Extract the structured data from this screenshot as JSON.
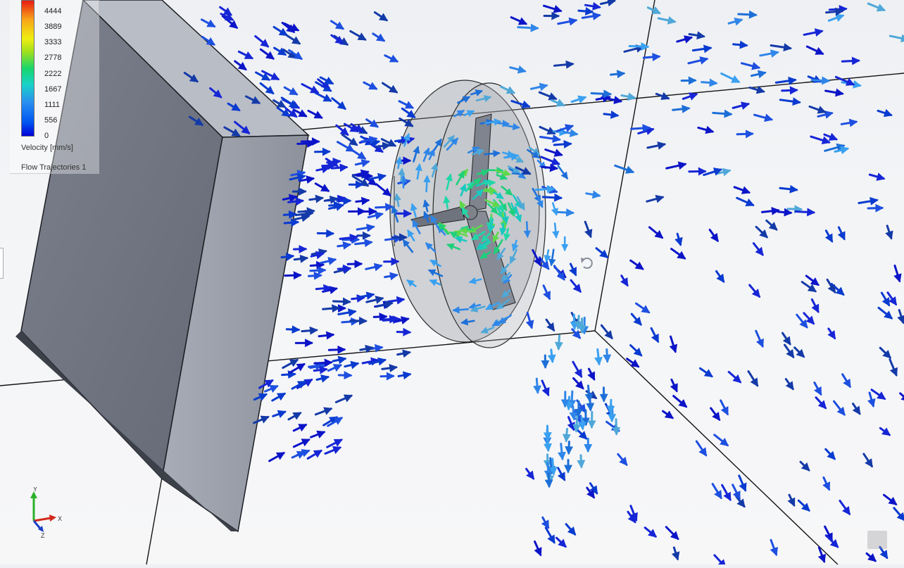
{
  "legend": {
    "ticks": [
      "4444",
      "3889",
      "3333",
      "2778",
      "2222",
      "1667",
      "1111",
      "556",
      "0"
    ],
    "title": "Velocity [mm/s]",
    "subtitle": "Flow Trajectories 1"
  },
  "triad": {
    "x_label": "X",
    "y_label": "Y",
    "z_label": "Z"
  },
  "colors": {
    "part_face_dark": "#6f7480",
    "part_face_light": "#8a8f9a",
    "part_edge": "#1b1d22",
    "velocity_low": "#0000d8",
    "velocity_mid": "#18d2c8",
    "velocity_high": "#19d66b"
  },
  "icons": [
    "rotate-cursor-icon",
    "coordinate-triad-icon"
  ]
}
